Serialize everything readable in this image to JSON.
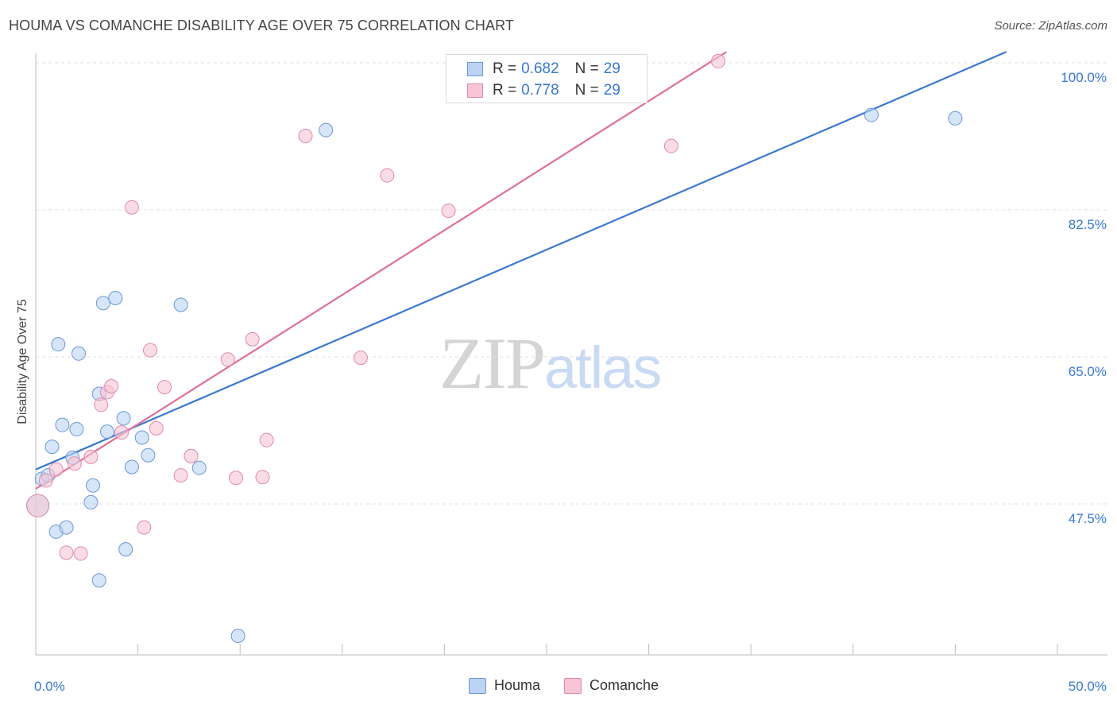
{
  "title": "HOUMA VS COMANCHE DISABILITY AGE OVER 75 CORRELATION CHART",
  "source": "Source: ZipAtlas.com",
  "watermark": {
    "part1": "ZIP",
    "part2": "atlas"
  },
  "colors": {
    "houma": "#3b78d0",
    "houma_fill": "#bcd3f3",
    "comanche": "#e07096",
    "comanche_fill": "#f7c5d4",
    "tick": "#3b78d0"
  },
  "legend": {
    "rows": [
      {
        "r_label": "R =",
        "r_value": "0.682",
        "n_label": "N =",
        "n_value": "29"
      },
      {
        "r_label": "R =",
        "r_value": "0.778",
        "n_label": "N =",
        "n_value": "29"
      }
    ],
    "bottom": [
      "Houma",
      "Comanche"
    ]
  },
  "chart_data": {
    "type": "scatter",
    "title": "HOUMA VS COMANCHE DISABILITY AGE OVER 75 CORRELATION CHART",
    "xlabel": "",
    "ylabel": "Disability Age Over 75",
    "xlim": [
      0,
      50
    ],
    "ylim": [
      31.0,
      103.0
    ],
    "x_tick_labels": [
      {
        "value": 0,
        "label": "0.0%"
      },
      {
        "value": 50,
        "label": "50.0%"
      }
    ],
    "y_tick_labels": [
      {
        "value": 100.0,
        "label": "100.0%"
      },
      {
        "value": 82.5,
        "label": "82.5%"
      },
      {
        "value": 65.0,
        "label": "65.0%"
      },
      {
        "value": 47.5,
        "label": "47.5%"
      }
    ],
    "series": [
      {
        "name": "Houma",
        "r": 0.682,
        "n": 29,
        "trend": {
          "x": [
            0,
            47.5
          ],
          "y": [
            53.3,
            103.0
          ]
        },
        "points": [
          {
            "x": 0.1,
            "y": 49.0
          },
          {
            "x": 0.3,
            "y": 52.2
          },
          {
            "x": 0.6,
            "y": 52.6
          },
          {
            "x": 0.8,
            "y": 56.0
          },
          {
            "x": 1.0,
            "y": 45.9
          },
          {
            "x": 1.1,
            "y": 68.2
          },
          {
            "x": 1.3,
            "y": 58.6
          },
          {
            "x": 1.5,
            "y": 46.4
          },
          {
            "x": 1.8,
            "y": 54.7
          },
          {
            "x": 2.0,
            "y": 58.1
          },
          {
            "x": 2.1,
            "y": 67.1
          },
          {
            "x": 2.7,
            "y": 49.4
          },
          {
            "x": 2.8,
            "y": 51.4
          },
          {
            "x": 3.1,
            "y": 62.3
          },
          {
            "x": 3.1,
            "y": 40.1
          },
          {
            "x": 3.3,
            "y": 73.1
          },
          {
            "x": 3.5,
            "y": 57.8
          },
          {
            "x": 3.9,
            "y": 73.7
          },
          {
            "x": 4.3,
            "y": 59.4
          },
          {
            "x": 4.4,
            "y": 43.8
          },
          {
            "x": 4.7,
            "y": 53.6
          },
          {
            "x": 5.2,
            "y": 57.1
          },
          {
            "x": 5.5,
            "y": 55.0
          },
          {
            "x": 7.1,
            "y": 72.9
          },
          {
            "x": 8.0,
            "y": 53.5
          },
          {
            "x": 9.9,
            "y": 33.5
          },
          {
            "x": 14.2,
            "y": 93.7
          },
          {
            "x": 40.9,
            "y": 95.5
          },
          {
            "x": 45.0,
            "y": 95.1
          }
        ]
      },
      {
        "name": "Comanche",
        "r": 0.778,
        "n": 29,
        "trend": {
          "x": [
            0,
            33.8
          ],
          "y": [
            51.0,
            103.0
          ]
        },
        "points": [
          {
            "x": 0.1,
            "y": 49.0
          },
          {
            "x": 0.5,
            "y": 52.0
          },
          {
            "x": 1.0,
            "y": 53.3
          },
          {
            "x": 1.5,
            "y": 43.4
          },
          {
            "x": 1.9,
            "y": 54.0
          },
          {
            "x": 2.2,
            "y": 43.3
          },
          {
            "x": 2.7,
            "y": 54.8
          },
          {
            "x": 3.2,
            "y": 61.0
          },
          {
            "x": 3.5,
            "y": 62.5
          },
          {
            "x": 3.7,
            "y": 63.2
          },
          {
            "x": 4.2,
            "y": 57.7
          },
          {
            "x": 4.7,
            "y": 84.5
          },
          {
            "x": 5.3,
            "y": 46.4
          },
          {
            "x": 5.6,
            "y": 67.5
          },
          {
            "x": 5.9,
            "y": 58.2
          },
          {
            "x": 6.3,
            "y": 63.1
          },
          {
            "x": 7.1,
            "y": 52.6
          },
          {
            "x": 7.6,
            "y": 54.9
          },
          {
            "x": 9.4,
            "y": 66.4
          },
          {
            "x": 9.8,
            "y": 52.3
          },
          {
            "x": 10.6,
            "y": 68.8
          },
          {
            "x": 11.1,
            "y": 52.4
          },
          {
            "x": 11.3,
            "y": 56.8
          },
          {
            "x": 13.2,
            "y": 93.0
          },
          {
            "x": 15.9,
            "y": 66.6
          },
          {
            "x": 17.2,
            "y": 88.3
          },
          {
            "x": 20.2,
            "y": 84.1
          },
          {
            "x": 31.1,
            "y": 91.8
          },
          {
            "x": 33.4,
            "y": 101.9
          }
        ]
      }
    ]
  }
}
